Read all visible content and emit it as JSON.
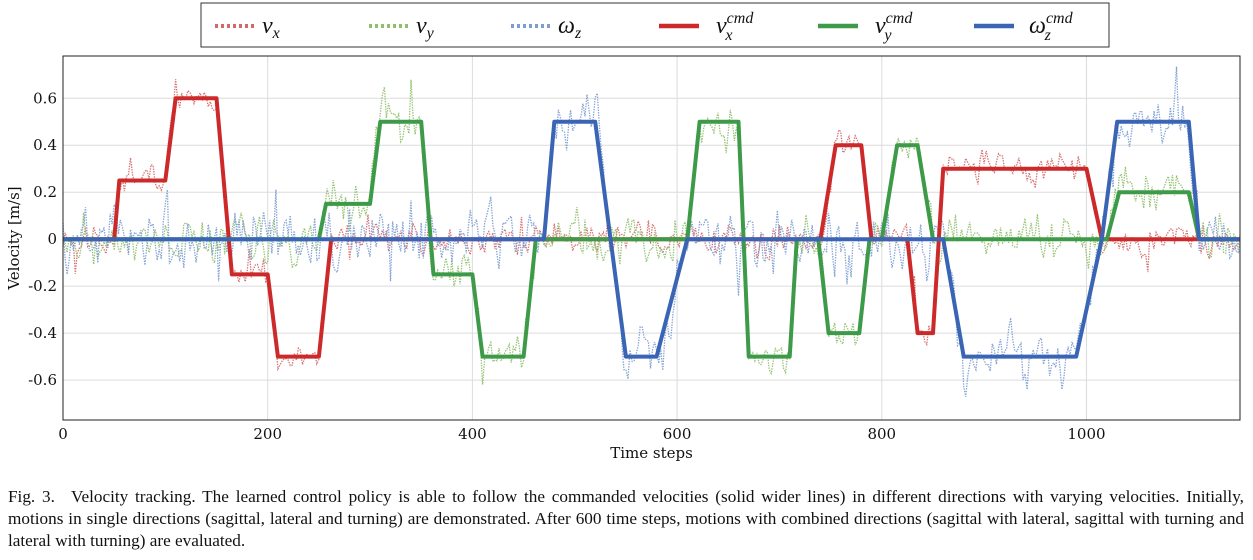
{
  "chart_data": {
    "type": "line",
    "xlabel": "Time steps",
    "ylabel": "Velocity [m/s]",
    "xlim": [
      0,
      1150
    ],
    "ylim": [
      -0.77,
      0.78
    ],
    "xticks": [
      0,
      200,
      400,
      600,
      800,
      1000
    ],
    "yticks": [
      -0.6,
      -0.4,
      -0.2,
      0,
      0.2,
      0.4,
      0.6
    ],
    "ytick_labels": [
      "-0.6",
      "-0.4",
      "-0.2",
      "0",
      "0.2",
      "0.4",
      "0.6"
    ],
    "grid": true,
    "legend_position": "top-center",
    "legend": [
      {
        "base": "v",
        "sub": "x",
        "sup": "",
        "color": "#d36a6a",
        "style": "dotted"
      },
      {
        "base": "v",
        "sub": "y",
        "sup": "",
        "color": "#8fbf6a",
        "style": "dotted"
      },
      {
        "base": "ω",
        "sub": "z",
        "sup": "",
        "color": "#7d9ed3",
        "style": "dotted"
      },
      {
        "base": "v",
        "sub": "x",
        "sup": "cmd",
        "color": "#cc2a2a",
        "style": "solid"
      },
      {
        "base": "v",
        "sub": "y",
        "sup": "cmd",
        "color": "#3d9a48",
        "style": "solid"
      },
      {
        "base": "ω",
        "sub": "z",
        "sup": "cmd",
        "color": "#3a64b4",
        "style": "solid"
      }
    ],
    "series": [
      {
        "name": "v_x^cmd",
        "color": "#cc2a2a",
        "style": "solid",
        "x": [
          0,
          50,
          55,
          100,
          110,
          150,
          165,
          200,
          210,
          250,
          262,
          740,
          755,
          780,
          790,
          825,
          835,
          850,
          860,
          1000,
          1015,
          1150
        ],
        "y": [
          0,
          0,
          0.25,
          0.25,
          0.6,
          0.6,
          -0.15,
          -0.15,
          -0.5,
          -0.5,
          0,
          0,
          0.4,
          0.4,
          0,
          0,
          -0.4,
          -0.4,
          0.3,
          0.3,
          0,
          0
        ]
      },
      {
        "name": "v_y^cmd",
        "color": "#3d9a48",
        "style": "solid",
        "x": [
          0,
          250,
          257,
          300,
          310,
          350,
          362,
          400,
          410,
          450,
          462,
          610,
          622,
          660,
          670,
          710,
          717,
          738,
          748,
          778,
          788,
          800,
          815,
          835,
          850,
          1020,
          1032,
          1100,
          1110,
          1150
        ],
        "y": [
          0,
          0,
          0.15,
          0.15,
          0.5,
          0.5,
          -0.15,
          -0.15,
          -0.5,
          -0.5,
          0,
          0,
          0.5,
          0.5,
          -0.5,
          -0.5,
          0,
          0,
          -0.4,
          -0.4,
          0,
          0,
          0.4,
          0.4,
          0,
          0,
          0.2,
          0.2,
          0,
          0
        ]
      },
      {
        "name": "ω_z^cmd",
        "color": "#3a64b4",
        "style": "solid",
        "x": [
          0,
          470,
          480,
          520,
          550,
          560,
          580,
          610,
          860,
          880,
          990,
          1015,
          1030,
          1100,
          1110,
          1150
        ],
        "y": [
          0,
          0,
          0.5,
          0.5,
          -0.5,
          -0.5,
          -0.5,
          0,
          0,
          -0.5,
          -0.5,
          0,
          0.5,
          0.5,
          0,
          0
        ]
      }
    ],
    "noisy_series": [
      {
        "name": "v_x",
        "color": "#d36a6a",
        "style": "dotted",
        "follows": "v_x^cmd",
        "noise": 0.04
      },
      {
        "name": "v_y",
        "color": "#8fbf6a",
        "style": "dotted",
        "follows": "v_y^cmd",
        "noise": 0.055
      },
      {
        "name": "ω_z",
        "color": "#7d9ed3",
        "style": "dotted",
        "follows": "ω_z^cmd",
        "noise": 0.07
      }
    ]
  },
  "caption": {
    "label": "Fig. 3.",
    "text": "Velocity tracking. The learned control policy is able to follow the commanded velocities (solid wider lines) in different directions with varying velocities. Initially, motions in single directions (sagittal, lateral and turning) are demonstrated. After 600 time steps, motions with combined directions (sagittal with lateral, sagittal with turning and lateral with turning) are evaluated."
  }
}
